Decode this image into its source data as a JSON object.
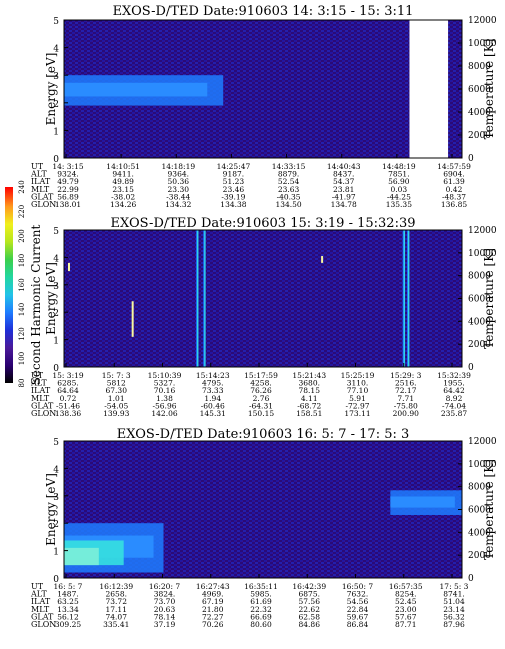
{
  "colors": {
    "background": "#ffffff",
    "plot_base": "#2a0a78",
    "plot_mid": "#1e2fd8",
    "plot_high": "#1e7cff",
    "plot_peak": "#35e0e0",
    "gap": "#ffffff",
    "colorbar": [
      "#000000",
      "#2a0070",
      "#4a1a9a",
      "#1e2fd8",
      "#1e7cff",
      "#22c3e8",
      "#22d6a0",
      "#3ccf4a",
      "#b6e61e",
      "#f0f01e",
      "#ffb41e",
      "#ff6010",
      "#ff0000"
    ]
  },
  "colorbar": {
    "label": "Second Harmonic Current",
    "ticks": [
      "240",
      "220",
      "200",
      "180",
      "160",
      "140",
      "120",
      "100",
      "80"
    ]
  },
  "chart_data": [
    {
      "type": "heatmap",
      "title": "EXOS-D/TED   Date:910603  14: 3:15 - 15: 3:11",
      "ylabel": "Energy [eV]",
      "y2label": "Temperature [K]",
      "ylim": [
        0,
        5
      ],
      "yticks": [
        "0",
        "1",
        "2",
        "3",
        "4",
        "5"
      ],
      "y2lim": [
        0,
        12000
      ],
      "y2ticks": [
        "0",
        "2000",
        "4000",
        "6000",
        "8000",
        "10000",
        "12000"
      ],
      "band": {
        "x_from": 0.0,
        "x_to": 0.4,
        "y_from": 1.9,
        "y_to": 3.0
      },
      "spikes": [],
      "gaps": [
        {
          "x_from": 0.868,
          "x_to": 0.965
        }
      ],
      "speckles": [],
      "ephemeris": {
        "rows": [
          "UT",
          "ALT",
          "ILAT",
          "MLT",
          "GLAT",
          "GLON"
        ],
        "columns": [
          [
            "14: 3:15",
            "9324.",
            "49.79",
            "22.99",
            "56.89",
            "138.01"
          ],
          [
            "14:10:51",
            "9411.",
            "49.89",
            "23.15",
            "-38.02",
            "134.26"
          ],
          [
            "14:18:19",
            "9364.",
            "50.36",
            "23.30",
            "-38.44",
            "134.32"
          ],
          [
            "14:25:47",
            "9187.",
            "51.23",
            "23.46",
            "-39.19",
            "134.38"
          ],
          [
            "14:33:15",
            "8879.",
            "52.54",
            "23.63",
            "-40.35",
            "134.50"
          ],
          [
            "14:40:43",
            "8437.",
            "54.37",
            "23.81",
            "-41.97",
            "134.78"
          ],
          [
            "14:48:19",
            "7851.",
            "56.90",
            "0.03",
            "-44.25",
            "135.35"
          ],
          [
            "14:57:59",
            "6904.",
            "61.39",
            "0.42",
            "-48.37",
            "136.85"
          ]
        ]
      }
    },
    {
      "type": "heatmap",
      "title": "EXOS-D/TED   Date:910603  15: 3:19 - 15:32:39",
      "ylabel": "Energy [eV]",
      "y2label": "Temperature [K]",
      "ylim": [
        0,
        5
      ],
      "yticks": [
        "0",
        "1",
        "2",
        "3",
        "4",
        "5"
      ],
      "y2lim": [
        0,
        12000
      ],
      "y2ticks": [
        "0",
        "2000",
        "4000",
        "6000",
        "8000",
        "10000",
        "12000"
      ],
      "band": null,
      "spikes": [
        {
          "x": 0.332,
          "width": 0.006
        },
        {
          "x": 0.35,
          "width": 0.006
        },
        {
          "x": 0.851,
          "width": 0.006
        },
        {
          "x": 0.862,
          "width": 0.006
        }
      ],
      "gaps": [],
      "speckles": [
        {
          "x": 0.01,
          "y": 3.5,
          "h": 0.3,
          "color": "#f8f8a0"
        },
        {
          "x": 0.17,
          "y": 1.1,
          "h": 1.3,
          "color": "#f8f8a0"
        },
        {
          "x": 0.646,
          "y": 3.8,
          "h": 0.25,
          "color": "#f8f8a0"
        }
      ],
      "ephemeris": {
        "rows": [
          "UT",
          "ALT",
          "ILAT",
          "MLT",
          "GLAT",
          "GLON"
        ],
        "columns": [
          [
            "15: 3:19",
            "6285.",
            "64.64",
            "0.72",
            "-51.46",
            "138.36"
          ],
          [
            "15: 7: 3",
            "5812",
            "67.30",
            "1.01",
            "-54.05",
            "139.93"
          ],
          [
            "15:10:39",
            "5327.",
            "70.16",
            "1.38",
            "-56.96",
            "142.06"
          ],
          [
            "15:14:23",
            "4795.",
            "73.33",
            "1.94",
            "-60.46",
            "145.31"
          ],
          [
            "15:17:59",
            "4258.",
            "76.26",
            "2.76",
            "-64.31",
            "150.15"
          ],
          [
            "15:21:43",
            "3680.",
            "78.15",
            "4.11",
            "-68.72",
            "158.51"
          ],
          [
            "15:25:19",
            "3110.",
            "77.10",
            "5.91",
            "-72.97",
            "173.11"
          ],
          [
            "15:29: 3",
            "2516.",
            "72.17",
            "7.71",
            "-75.80",
            "200.90"
          ],
          [
            "15:32:39",
            "1955.",
            "64.42",
            "8.92",
            "-74.04",
            "235.87"
          ]
        ]
      }
    },
    {
      "type": "heatmap",
      "title": "EXOS-D/TED   Date:910603  16: 5: 7 - 17: 5: 3",
      "ylabel": "Energy [eV]",
      "y2label": "Temperature [K]",
      "ylim": [
        0,
        5
      ],
      "yticks": [
        "0",
        "1",
        "2",
        "3",
        "4",
        "5"
      ],
      "y2lim": [
        0,
        12000
      ],
      "y2ticks": [
        "0",
        "2000",
        "4000",
        "6000",
        "8000",
        "10000",
        "12000"
      ],
      "band": {
        "x_from": 0.0,
        "x_to": 0.25,
        "y_from": 0.2,
        "y_to": 2.0,
        "peak": true
      },
      "band2": {
        "x_from": 0.82,
        "x_to": 1.0,
        "y_from": 2.3,
        "y_to": 3.2
      },
      "spikes": [],
      "gaps": [],
      "speckles": [],
      "ephemeris": {
        "rows": [
          "UT",
          "ALT",
          "ILAT",
          "MLT",
          "GLAT",
          "GLON"
        ],
        "columns": [
          [
            "16: 5: 7",
            "1487.",
            "63.25",
            "13.34",
            "56.12",
            "309.25"
          ],
          [
            "16:12:39",
            "2658.",
            "73.72",
            "17.11",
            "74.07",
            "335.41"
          ],
          [
            "16:20: 7",
            "3824.",
            "73.70",
            "20.63",
            "78.14",
            "37.19"
          ],
          [
            "16:27:43",
            "4969.",
            "67.19",
            "21.80",
            "72.27",
            "70.26"
          ],
          [
            "16:35:11",
            "5985.",
            "61.69",
            "22.32",
            "66.69",
            "80.60"
          ],
          [
            "16:42:39",
            "6875.",
            "57.56",
            "22.62",
            "62.58",
            "84.86"
          ],
          [
            "16:50: 7",
            "7632.",
            "54.56",
            "22.84",
            "59.67",
            "86.84"
          ],
          [
            "16:57:35",
            "8254.",
            "52.45",
            "23.00",
            "57.67",
            "87.71"
          ],
          [
            "17: 5: 3",
            "8741.",
            "51.04",
            "23.14",
            "56.32",
            "87.96"
          ]
        ]
      }
    }
  ]
}
